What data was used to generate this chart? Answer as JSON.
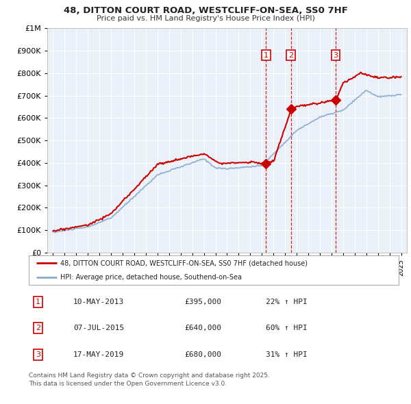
{
  "title": "48, DITTON COURT ROAD, WESTCLIFF-ON-SEA, SS0 7HF",
  "subtitle": "Price paid vs. HM Land Registry's House Price Index (HPI)",
  "sales": [
    {
      "num": 1,
      "date": "10-MAY-2013",
      "price": 395000,
      "pct": "22%",
      "year": 2013.36
    },
    {
      "num": 2,
      "date": "07-JUL-2015",
      "price": 640000,
      "pct": "60%",
      "year": 2015.51
    },
    {
      "num": 3,
      "date": "17-MAY-2019",
      "price": 680000,
      "pct": "31%",
      "year": 2019.37
    }
  ],
  "legend_line1": "48, DITTON COURT ROAD, WESTCLIFF-ON-SEA, SS0 7HF (detached house)",
  "legend_line2": "HPI: Average price, detached house, Southend-on-Sea",
  "footer": "Contains HM Land Registry data © Crown copyright and database right 2025.\nThis data is licensed under the Open Government Licence v3.0.",
  "red_color": "#cc0000",
  "blue_color": "#88aacc",
  "bg_color": "#eaf0f8",
  "ylim": [
    0,
    1000000
  ],
  "xlim": [
    1994.5,
    2025.5
  ]
}
